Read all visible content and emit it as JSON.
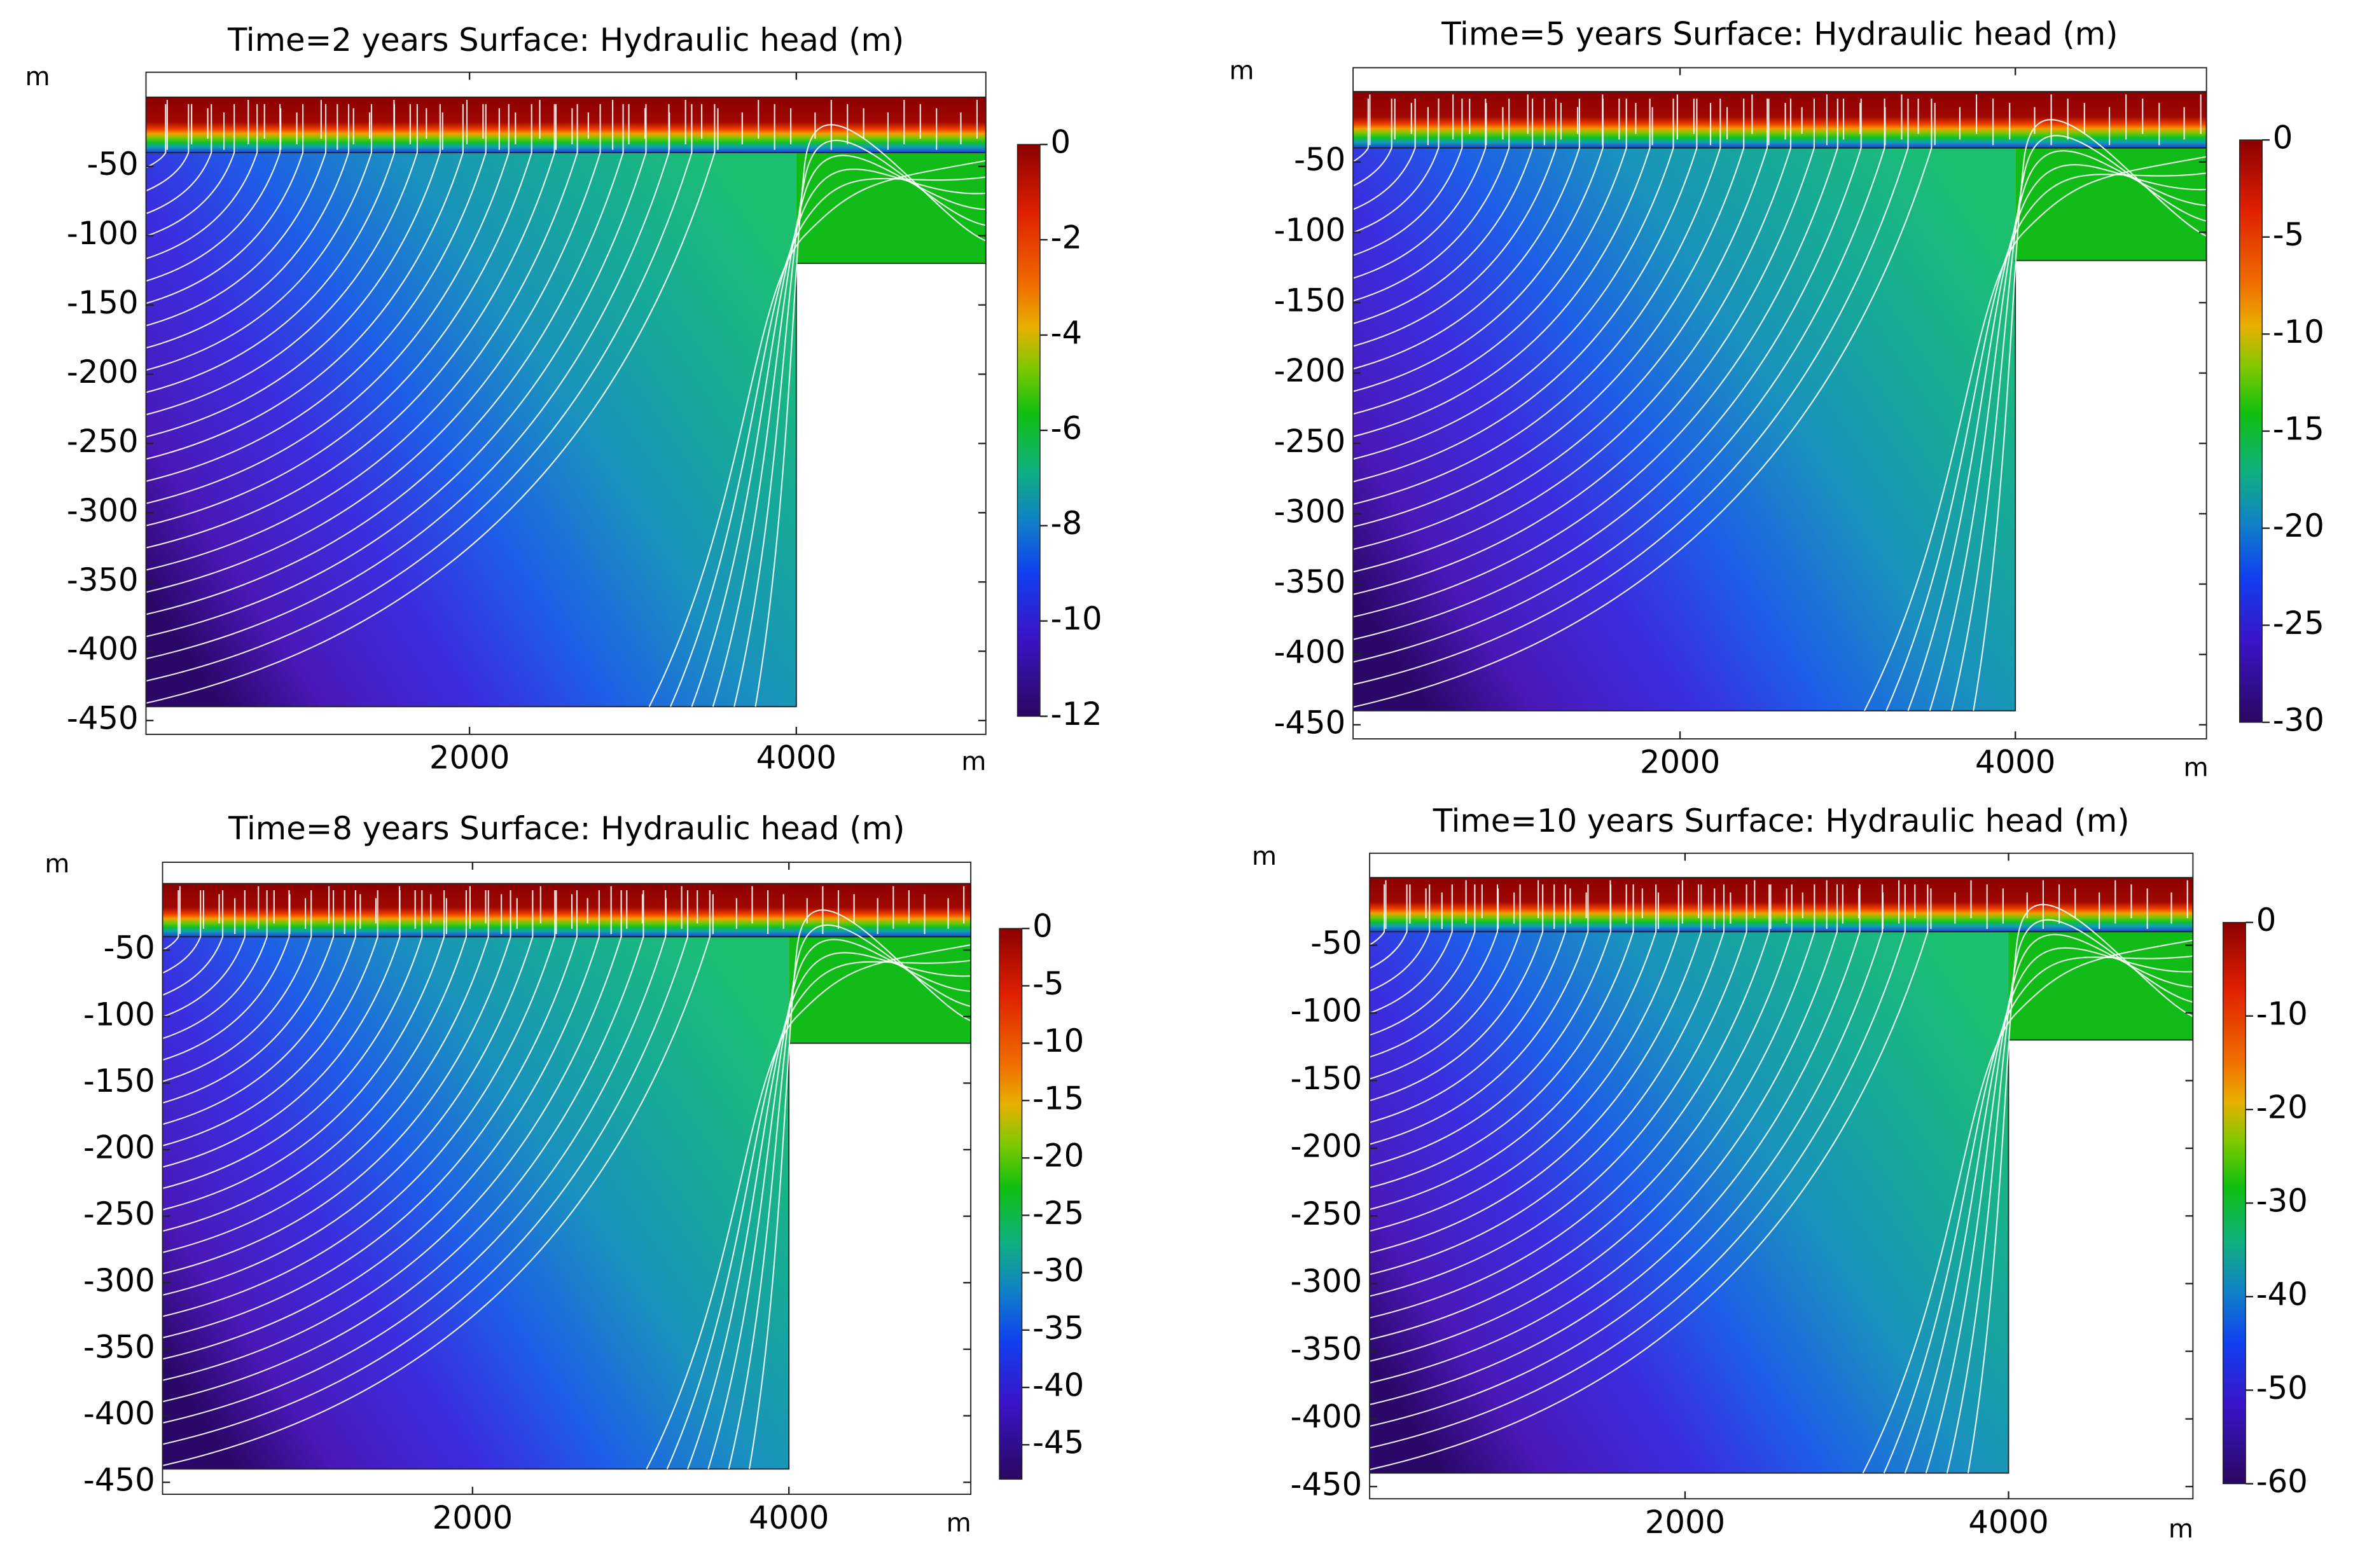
{
  "chart_data": [
    {
      "type": "surface",
      "title": "Time=2 years Surface: Hydraulic head (m)",
      "x_label": "m",
      "y_label": "m",
      "xlim": [
        20,
        5160
      ],
      "xticks": [
        2000,
        4000
      ],
      "ylim": [
        -460,
        18
      ],
      "yticks": [
        -50,
        -100,
        -150,
        -200,
        -250,
        -300,
        -350,
        -400,
        -450
      ],
      "clim": [
        -12,
        0
      ],
      "cticks": [
        0,
        -2,
        -4,
        -6,
        -8,
        -10,
        -12
      ]
    },
    {
      "type": "surface",
      "title": "Time=5 years Surface: Hydraulic head (m)",
      "x_label": "m",
      "y_label": "m",
      "xlim": [
        50,
        5140
      ],
      "xticks": [
        2000,
        4000
      ],
      "ylim": [
        -460,
        17
      ],
      "yticks": [
        -50,
        -100,
        -150,
        -200,
        -250,
        -300,
        -350,
        -400,
        -450
      ],
      "clim": [
        -30,
        0
      ],
      "cticks": [
        0,
        -5,
        -10,
        -15,
        -20,
        -25,
        -30
      ]
    },
    {
      "type": "surface",
      "title": "Time=8 years Surface: Hydraulic head (m)",
      "x_label": "m",
      "y_label": "m",
      "xlim": [
        40,
        5150
      ],
      "xticks": [
        2000,
        4000
      ],
      "ylim": [
        -459,
        16
      ],
      "yticks": [
        -50,
        -100,
        -150,
        -200,
        -250,
        -300,
        -350,
        -400,
        -450
      ],
      "clim": [
        -48,
        0
      ],
      "cticks": [
        0,
        -5,
        -10,
        -15,
        -20,
        -25,
        -30,
        -35,
        -40,
        -45
      ]
    },
    {
      "type": "surface",
      "title": "Time=10 years Surface: Hydraulic head (m)",
      "x_label": "m",
      "y_label": "m",
      "xlim": [
        50,
        5140
      ],
      "xticks": [
        2000,
        4000
      ],
      "ylim": [
        -459,
        18
      ],
      "yticks": [
        -50,
        -100,
        -150,
        -200,
        -250,
        -300,
        -350,
        -400,
        -450
      ],
      "clim": [
        -60,
        0
      ],
      "cticks": [
        0,
        -10,
        -20,
        -30,
        -40,
        -50,
        -60
      ]
    }
  ]
}
